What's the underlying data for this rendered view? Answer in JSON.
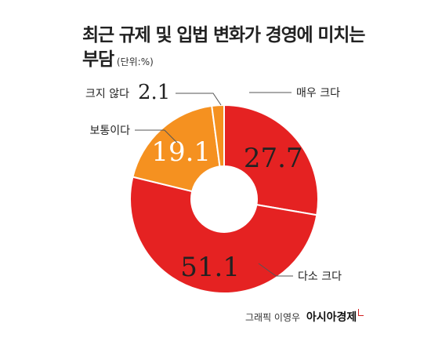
{
  "chart_data": {
    "type": "pie",
    "title": "최근 규제 및 입법 변화가 경영에 미치는 부담",
    "title_line1": "최근 규제 및 입법 변화가 경영에 미치는",
    "title_line2": "부담",
    "unit": "(단위:%)",
    "style": "donut",
    "categories": [
      "매우 크다",
      "다소 크다",
      "보통이다",
      "크지 않다"
    ],
    "values": [
      27.7,
      51.1,
      19.1,
      2.1
    ],
    "value_labels": [
      "27.7",
      "51.1",
      "19.1",
      "2.1"
    ],
    "colors": [
      "#e52222",
      "#e52222",
      "#f59120",
      "#f59120"
    ]
  },
  "credit": {
    "text": "그래픽 이영우",
    "brand": "아시아경제"
  }
}
